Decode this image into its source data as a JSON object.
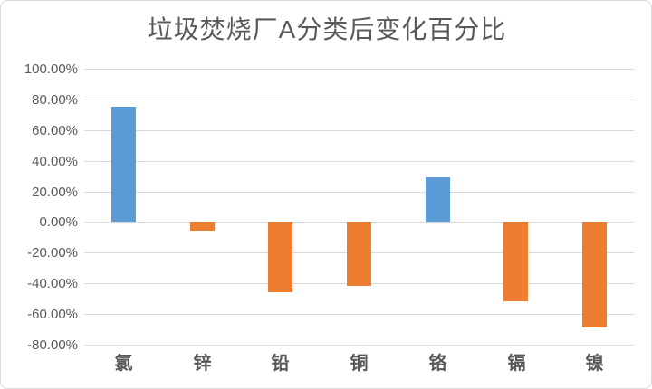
{
  "chart_data": {
    "type": "bar",
    "title": "垃圾焚烧厂A分类后变化百分比",
    "categories": [
      "氯",
      "锌",
      "铅",
      "铜",
      "铬",
      "镉",
      "镍"
    ],
    "values": [
      75,
      -6,
      -46,
      -42,
      29,
      -52,
      -69
    ],
    "value_unit": "%",
    "ylim": [
      -80,
      100
    ],
    "ytick_step": 20,
    "ytick_labels": [
      "100.00%",
      "80.00%",
      "60.00%",
      "40.00%",
      "20.00%",
      "0.00%",
      "-20.00%",
      "-40.00%",
      "-60.00%",
      "-80.00%"
    ],
    "grid": true,
    "legend": "none",
    "colors": {
      "positive_bar": "#5B9BD5",
      "negative_bar": "#ED7D31",
      "gridline": "#D9D9D9",
      "title_text": "#595959",
      "axis_text": "#595959",
      "frame_border": "#D9D9D9",
      "background": "#FFFFFF"
    }
  }
}
